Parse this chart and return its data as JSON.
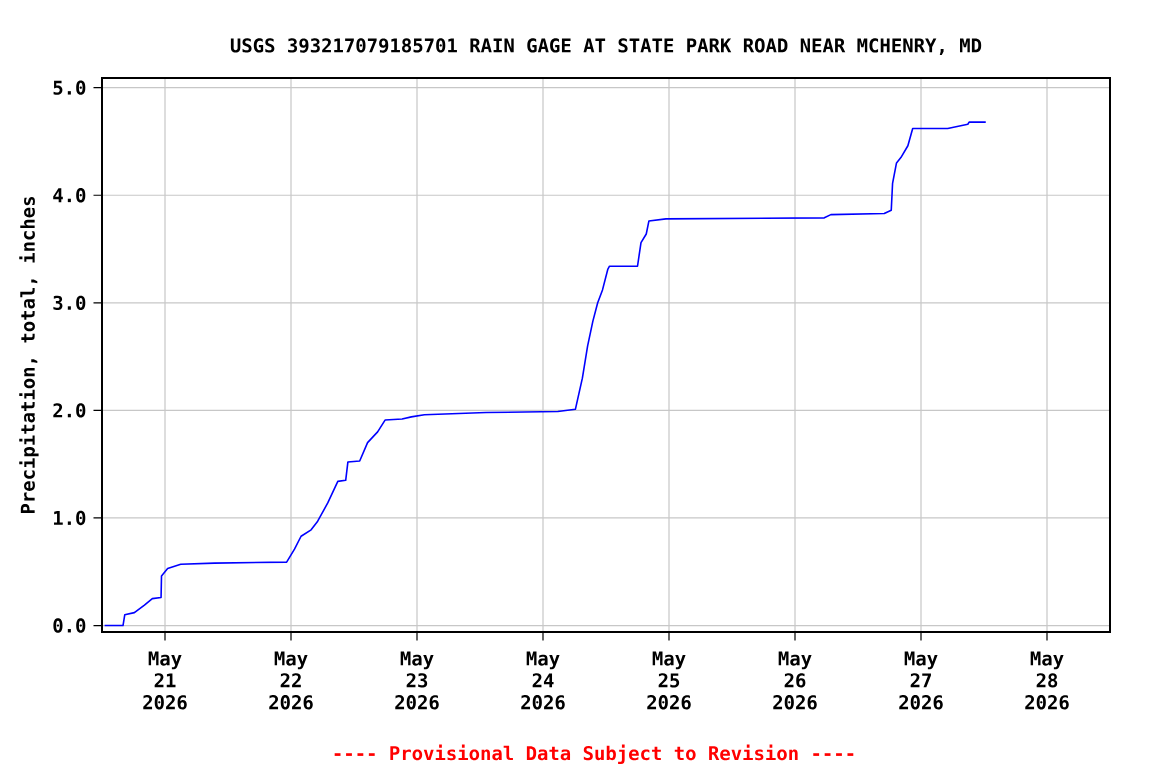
{
  "chart_data": {
    "type": "line",
    "title": "USGS 393217079185701 RAIN GAGE AT STATE PARK ROAD NEAR MCHENRY, MD",
    "ylabel": "Precipitation, total, inches",
    "annotations": [
      "---- Provisional Data Subject to Revision ----"
    ],
    "x": [
      "2026-05-20T12:30",
      "2026-05-20T16:00",
      "2026-05-20T16:20",
      "2026-05-20T18:10",
      "2026-05-20T20:05",
      "2026-05-20T21:35",
      "2026-05-20T23:15",
      "2026-05-20T23:20",
      "2026-05-21T00:30",
      "2026-05-21T03:00",
      "2026-05-21T09:25",
      "2026-05-21T23:10",
      "2026-05-22T00:40",
      "2026-05-22T01:55",
      "2026-05-22T03:50",
      "2026-05-22T05:05",
      "2026-05-22T07:00",
      "2026-05-22T08:55",
      "2026-05-22T10:25",
      "2026-05-22T10:50",
      "2026-05-22T13:05",
      "2026-05-22T14:35",
      "2026-05-22T16:30",
      "2026-05-22T17:55",
      "2026-05-22T21:10",
      "2026-05-22T22:55",
      "2026-05-23T01:25",
      "2026-05-23T13:10",
      "2026-05-24T02:50",
      "2026-05-24T06:10",
      "2026-05-24T07:30",
      "2026-05-24T08:30",
      "2026-05-24T09:30",
      "2026-05-24T10:25",
      "2026-05-24T11:20",
      "2026-05-24T12:20",
      "2026-05-24T12:40",
      "2026-05-24T18:00",
      "2026-05-24T18:40",
      "2026-05-24T19:40",
      "2026-05-24T20:10",
      "2026-05-24T23:25",
      "2026-05-26T05:35",
      "2026-05-26T06:50",
      "2026-05-26T17:00",
      "2026-05-26T18:20",
      "2026-05-26T18:35",
      "2026-05-26T19:20",
      "2026-05-26T20:10",
      "2026-05-26T21:30",
      "2026-05-26T22:25",
      "2026-05-27T05:05",
      "2026-05-27T08:55",
      "2026-05-27T09:10",
      "2026-05-27T12:20"
    ],
    "series": [
      {
        "color": "#0000ff",
        "values": [
          0.0,
          0.0,
          0.1,
          0.12,
          0.19,
          0.25,
          0.26,
          0.46,
          0.53,
          0.57,
          0.58,
          0.59,
          0.71,
          0.83,
          0.89,
          0.97,
          1.14,
          1.34,
          1.35,
          1.52,
          1.53,
          1.7,
          1.8,
          1.91,
          1.92,
          1.94,
          1.96,
          1.98,
          1.99,
          2.01,
          2.3,
          2.6,
          2.83,
          3.0,
          3.12,
          3.31,
          3.34,
          3.34,
          3.56,
          3.64,
          3.76,
          3.78,
          3.79,
          3.82,
          3.83,
          3.86,
          4.11,
          4.3,
          4.35,
          4.46,
          4.62,
          4.62,
          4.66,
          4.68,
          4.68
        ]
      }
    ],
    "xlim": [
      "2026-05-20T12:00",
      "2026-05-28T12:00"
    ],
    "xticks": [
      {
        "value": "2026-05-21",
        "label": "May 21 2026"
      },
      {
        "value": "2026-05-22",
        "label": "May 22 2026"
      },
      {
        "value": "2026-05-23",
        "label": "May 23 2026"
      },
      {
        "value": "2026-05-24",
        "label": "May 24 2026"
      },
      {
        "value": "2026-05-25",
        "label": "May 25 2026"
      },
      {
        "value": "2026-05-26",
        "label": "May 26 2026"
      },
      {
        "value": "2026-05-27",
        "label": "May 27 2026"
      },
      {
        "value": "2026-05-28",
        "label": "May 28 2026"
      }
    ],
    "ylim": [
      -0.06,
      5.09
    ],
    "yticks": [
      {
        "value": 0,
        "label": "0.0"
      },
      {
        "value": 1,
        "label": "1.0"
      },
      {
        "value": 2,
        "label": "2.0"
      },
      {
        "value": 3,
        "label": "3.0"
      },
      {
        "value": 4,
        "label": "4.0"
      },
      {
        "value": 5,
        "label": "5.0"
      }
    ],
    "grid": true,
    "marker": "none",
    "line_style": "solid"
  }
}
